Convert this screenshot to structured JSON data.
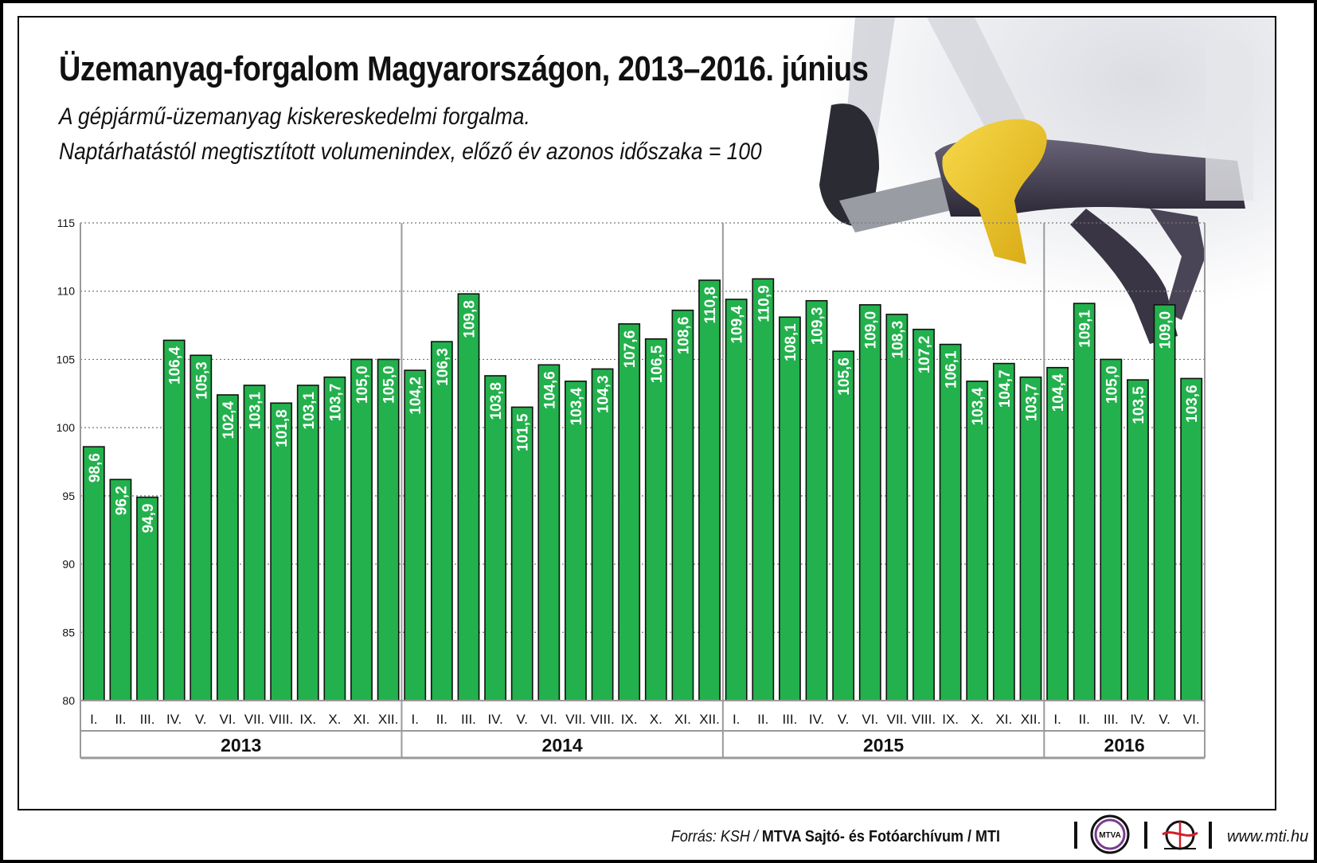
{
  "title": "Üzemanyag-forgalom Magyarországon, 2013–2016. június",
  "subtitle_line1": "A gépjármű-üzemanyag kiskereskedelmi forgalma.",
  "subtitle_line2": "Naptárhatástól megtisztított volumenindex, előző év azonos időszaka = 100",
  "footer": {
    "source_prefix": "Forrás: KSH /",
    "source_bold": "MTVA Sajtó- és Fotóarchívum / MTI",
    "mtva_logo_text": "MTVA",
    "website": "www.mti.hu"
  },
  "colors": {
    "bar": "#22b14c",
    "bar_stroke": "#111111",
    "bar_label": "#ffffff",
    "grid": "#777777"
  },
  "chart_data": {
    "type": "bar",
    "title": "Üzemanyag-forgalom Magyarországon, 2013–2016. június",
    "ylim": [
      80,
      115
    ],
    "yticks": [
      80,
      85,
      90,
      95,
      100,
      105,
      110,
      115
    ],
    "grid": "horizontal dotted",
    "groups": [
      {
        "year": "2013",
        "months": [
          "I.",
          "II.",
          "III.",
          "IV.",
          "V.",
          "VI.",
          "VII.",
          "VIII.",
          "IX.",
          "X.",
          "XI.",
          "XII."
        ],
        "values": [
          98.6,
          96.2,
          94.9,
          106.4,
          105.3,
          102.4,
          103.1,
          101.8,
          103.1,
          103.7,
          105.0,
          105.0
        ],
        "labels": [
          "98,6",
          "96,2",
          "94,9",
          "106,4",
          "105,3",
          "102,4",
          "103,1",
          "101,8",
          "103,1",
          "103,7",
          "105,0",
          "105,0"
        ]
      },
      {
        "year": "2014",
        "months": [
          "I.",
          "II.",
          "III.",
          "IV.",
          "V.",
          "VI.",
          "VII.",
          "VIII.",
          "IX.",
          "X.",
          "XI.",
          "XII."
        ],
        "values": [
          104.2,
          106.3,
          109.8,
          103.8,
          101.5,
          104.6,
          103.4,
          104.3,
          107.6,
          106.5,
          108.6,
          110.8
        ],
        "labels": [
          "104,2",
          "106,3",
          "109,8",
          "103,8",
          "101,5",
          "104,6",
          "103,4",
          "104,3",
          "107,6",
          "106,5",
          "108,6",
          "110,8"
        ]
      },
      {
        "year": "2015",
        "months": [
          "I.",
          "II.",
          "III.",
          "IV.",
          "V.",
          "VI.",
          "VII.",
          "VIII.",
          "IX.",
          "X.",
          "XI.",
          "XII."
        ],
        "values": [
          109.4,
          110.9,
          108.1,
          109.3,
          105.6,
          109.0,
          108.3,
          107.2,
          106.1,
          103.4,
          104.7,
          103.7
        ],
        "labels": [
          "109,4",
          "110,9",
          "108,1",
          "109,3",
          "105,6",
          "109,0",
          "108,3",
          "107,2",
          "106,1",
          "103,4",
          "104,7",
          "103,7"
        ]
      },
      {
        "year": "2016",
        "months": [
          "I.",
          "II.",
          "III.",
          "IV.",
          "V.",
          "VI."
        ],
        "values": [
          104.4,
          109.1,
          105.0,
          103.5,
          109.0,
          103.6
        ],
        "labels": [
          "104,4",
          "109,1",
          "105,0",
          "103,5",
          "109,0",
          "103,6"
        ]
      }
    ]
  }
}
